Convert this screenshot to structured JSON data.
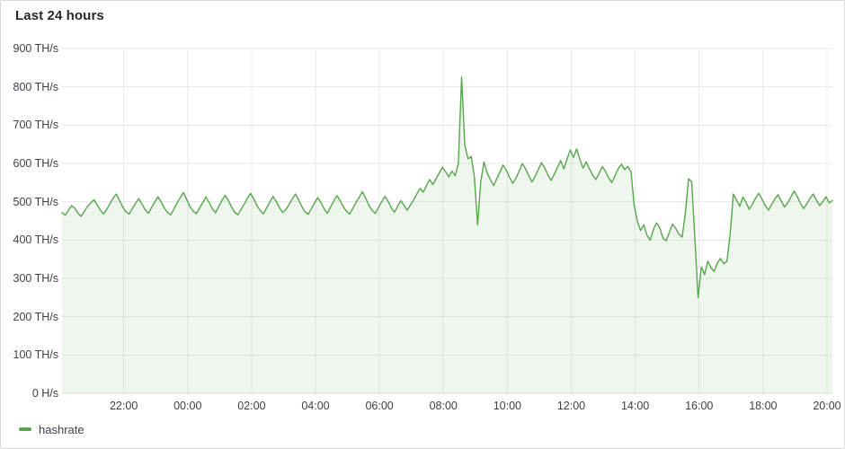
{
  "panel": {
    "title": "Last 24 hours",
    "background": "#ffffff",
    "border_color": "#d8d9dd"
  },
  "colors": {
    "series_green": "#56A64B",
    "grid": "#e8e9eb",
    "axis_text": "#3c4149",
    "title_text": "#24292e"
  },
  "legend": {
    "position": "bottom-left",
    "items": [
      {
        "label": "hashrate",
        "color": "#56A64B"
      }
    ]
  },
  "chart_data": {
    "type": "area",
    "title": "Last 24 hours",
    "unit": "TH/s",
    "ylim": [
      0,
      900
    ],
    "grid": true,
    "legend_position": "bottom-left",
    "y_ticks": [
      {
        "v": 0,
        "label": "0 H/s"
      },
      {
        "v": 100,
        "label": "100 TH/s"
      },
      {
        "v": 200,
        "label": "200 TH/s"
      },
      {
        "v": 300,
        "label": "300 TH/s"
      },
      {
        "v": 400,
        "label": "400 TH/s"
      },
      {
        "v": 500,
        "label": "500 TH/s"
      },
      {
        "v": 600,
        "label": "600 TH/s"
      },
      {
        "v": 700,
        "label": "700 TH/s"
      },
      {
        "v": 800,
        "label": "800 TH/s"
      },
      {
        "v": 900,
        "label": "900 TH/s"
      }
    ],
    "x_range_hours": [
      0,
      24.1
    ],
    "x_step_hours": 0.1,
    "x_ticks": [
      {
        "t": 1.93,
        "label": "22:00"
      },
      {
        "t": 3.93,
        "label": "00:00"
      },
      {
        "t": 5.93,
        "label": "02:00"
      },
      {
        "t": 7.93,
        "label": "04:00"
      },
      {
        "t": 9.93,
        "label": "06:00"
      },
      {
        "t": 11.93,
        "label": "08:00"
      },
      {
        "t": 13.93,
        "label": "10:00"
      },
      {
        "t": 15.93,
        "label": "12:00"
      },
      {
        "t": 17.93,
        "label": "14:00"
      },
      {
        "t": 19.93,
        "label": "16:00"
      },
      {
        "t": 21.93,
        "label": "18:00"
      },
      {
        "t": 23.93,
        "label": "20:00"
      }
    ],
    "series": [
      {
        "name": "hashrate",
        "color": "#56A64B",
        "fill_opacity": 0.1,
        "values": [
          472,
          465,
          478,
          490,
          483,
          470,
          462,
          475,
          488,
          497,
          505,
          492,
          478,
          468,
          480,
          495,
          510,
          520,
          503,
          486,
          474,
          468,
          482,
          496,
          508,
          494,
          479,
          470,
          485,
          499,
          513,
          500,
          484,
          472,
          466,
          481,
          497,
          511,
          524,
          506,
          488,
          476,
          469,
          483,
          498,
          512,
          499,
          482,
          471,
          487,
          503,
          517,
          504,
          487,
          473,
          466,
          480,
          494,
          509,
          522,
          507,
          490,
          477,
          468,
          484,
          499,
          514,
          501,
          485,
          472,
          479,
          493,
          507,
          520,
          505,
          488,
          474,
          467,
          482,
          497,
          511,
          498,
          481,
          470,
          486,
          502,
          516,
          503,
          487,
          475,
          468,
          483,
          499,
          512,
          526,
          509,
          491,
          478,
          470,
          485,
          500,
          514,
          502,
          484,
          473,
          488,
          503,
          490,
          478,
          492,
          505,
          520,
          535,
          525,
          542,
          558,
          545,
          560,
          575,
          590,
          578,
          565,
          580,
          568,
          600,
          825,
          648,
          612,
          618,
          565,
          440,
          552,
          604,
          575,
          558,
          542,
          560,
          578,
          596,
          582,
          564,
          548,
          562,
          580,
          600,
          586,
          568,
          552,
          566,
          584,
          602,
          588,
          570,
          556,
          572,
          590,
          608,
          586,
          612,
          635,
          616,
          638,
          610,
          588,
          604,
          586,
          570,
          558,
          574,
          592,
          580,
          562,
          550,
          568,
          586,
          598,
          584,
          592,
          578,
          490,
          448,
          425,
          440,
          412,
          400,
          428,
          445,
          432,
          405,
          398,
          420,
          442,
          430,
          415,
          408,
          470,
          560,
          552,
          400,
          250,
          330,
          310,
          345,
          328,
          318,
          340,
          352,
          338,
          345,
          415,
          520,
          505,
          488,
          512,
          498,
          480,
          495,
          510,
          522,
          506,
          490,
          478,
          493,
          508,
          518,
          502,
          486,
          497,
          512,
          528,
          514,
          496,
          482,
          495,
          509,
          520,
          504,
          490,
          500,
          513,
          497,
          503
        ]
      }
    ]
  }
}
